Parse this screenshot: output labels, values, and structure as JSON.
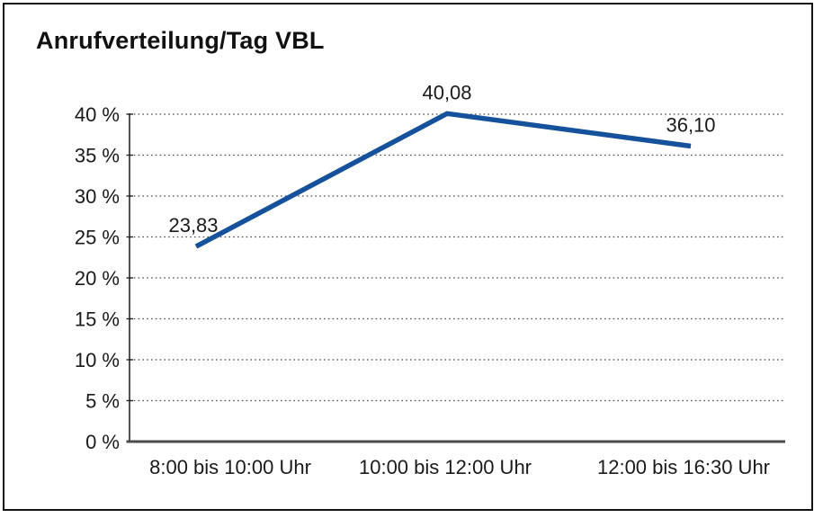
{
  "window": {
    "background": "#ffffff",
    "border_color": "#141414"
  },
  "header": {
    "title": "Anrufverteilung/Tag VBL"
  },
  "chart_data": {
    "type": "line",
    "title": "Anrufverteilung/Tag VBL",
    "categories": [
      "8:00 bis 10:00 Uhr",
      "10:00 bis 12:00 Uhr",
      "12:00 bis 16:30 Uhr"
    ],
    "values": [
      23.83,
      40.08,
      36.1
    ],
    "point_labels": [
      "23,83",
      "40,08",
      "36,10"
    ],
    "xlabel": "",
    "ylabel": "",
    "ylim": [
      0,
      40
    ],
    "ytick_step": 5,
    "ytick_labels": [
      "0 %",
      "5 %",
      "10 %",
      "15 %",
      "20 %",
      "25 %",
      "30 %",
      "35 %",
      "40 %"
    ],
    "grid": "horizontal-dotted",
    "legend": "none",
    "line_color": "#15529b",
    "text_color": "#1a1a1a",
    "grid_color": "#4d4d4d",
    "axis_color": "#262626",
    "baseline_color": "#4a4a4a"
  }
}
